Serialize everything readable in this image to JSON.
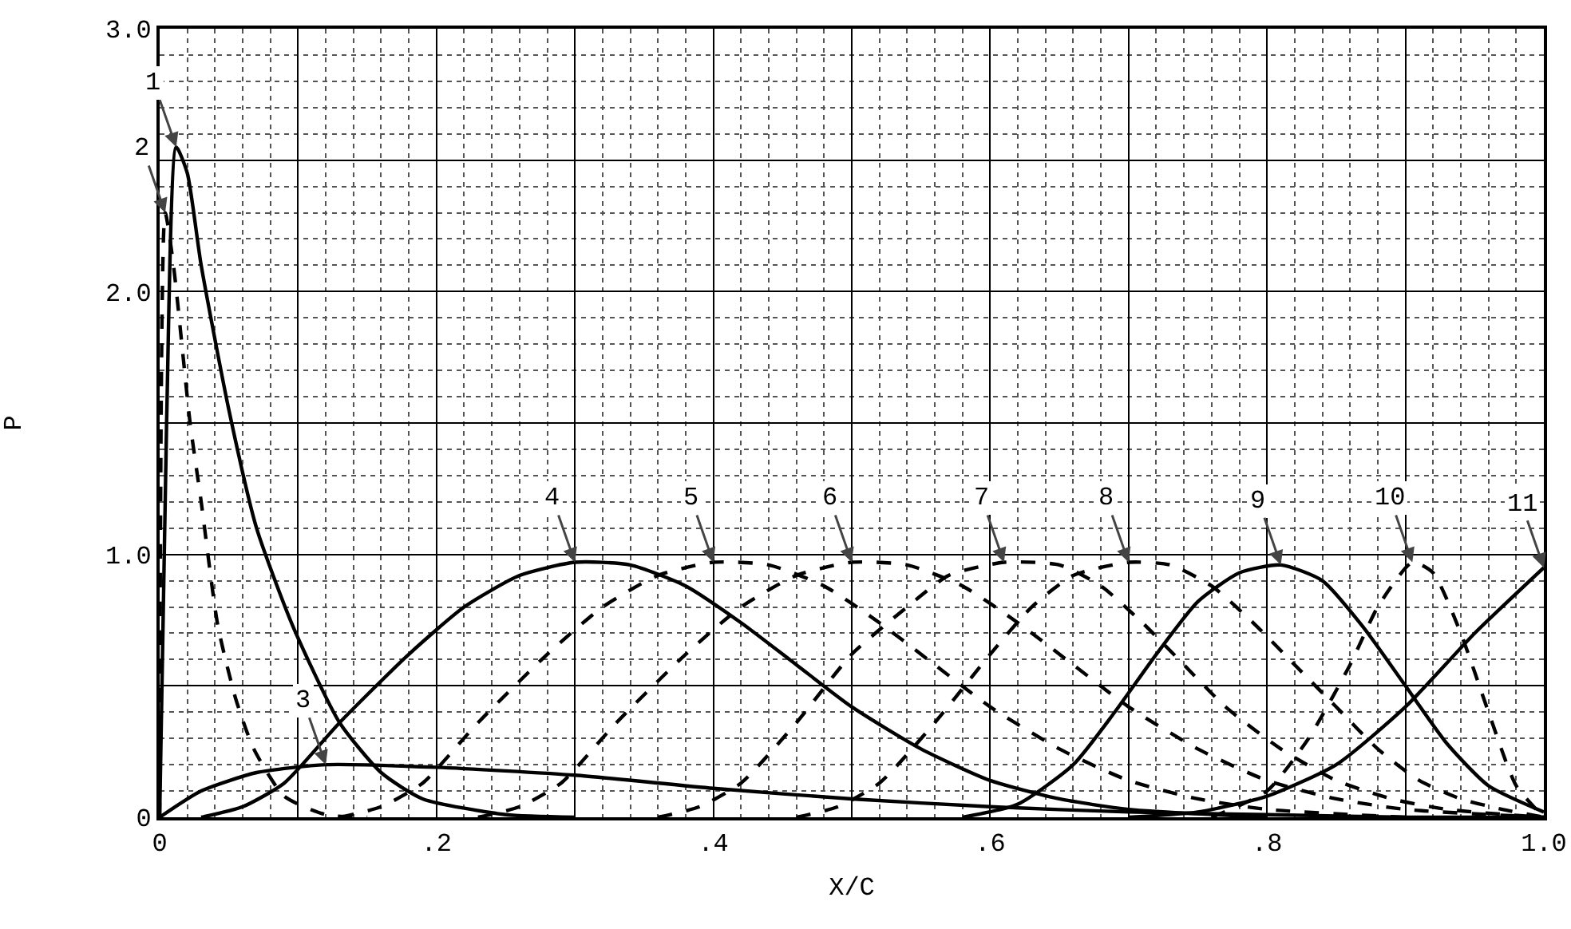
{
  "chart_data": {
    "type": "line",
    "xlabel": "X/C",
    "ylabel": "P",
    "xlim": [
      0,
      1.0
    ],
    "ylim": [
      0,
      3.0
    ],
    "xticks": [
      {
        "value": 0,
        "label": "0"
      },
      {
        "value": 0.1,
        "label": null
      },
      {
        "value": 0.2,
        "label": ".2"
      },
      {
        "value": 0.3,
        "label": null
      },
      {
        "value": 0.4,
        "label": ".4"
      },
      {
        "value": 0.5,
        "label": null
      },
      {
        "value": 0.6,
        "label": ".6"
      },
      {
        "value": 0.7,
        "label": null
      },
      {
        "value": 0.8,
        "label": ".8"
      },
      {
        "value": 0.9,
        "label": null
      },
      {
        "value": 1.0,
        "label": "1.0"
      }
    ],
    "yticks": [
      {
        "value": 0,
        "label": "0"
      },
      {
        "value": 0.5,
        "label": null
      },
      {
        "value": 1.0,
        "label": "1.0"
      },
      {
        "value": 1.5,
        "label": null
      },
      {
        "value": 2.0,
        "label": "2.0"
      },
      {
        "value": 2.5,
        "label": null
      },
      {
        "value": 3.0,
        "label": "3.0"
      }
    ],
    "grid": true,
    "legend": false,
    "marker": "none",
    "series": [
      {
        "name": "1",
        "color": "#000000",
        "line_style": "solid",
        "x": [
          0,
          0.005,
          0.012,
          0.02,
          0.03,
          0.05,
          0.07,
          0.096,
          0.13,
          0.16,
          0.19,
          0.25,
          0.3
        ],
        "values": [
          0,
          1.5,
          2.55,
          2.45,
          2.1,
          1.55,
          1.1,
          0.73,
          0.36,
          0.17,
          0.07,
          0.01,
          0
        ]
      },
      {
        "name": "2",
        "color": "#000000",
        "line_style": "dashed",
        "x": [
          0,
          0.004,
          0.01,
          0.022,
          0.03,
          0.042,
          0.055,
          0.068,
          0.09,
          0.12,
          0.15
        ],
        "values": [
          0,
          2.3,
          2.1,
          1.5,
          1.2,
          0.73,
          0.45,
          0.26,
          0.08,
          0.01,
          0
        ]
      },
      {
        "name": "3",
        "color": "#000000",
        "line_style": "solid",
        "x": [
          0,
          0.03,
          0.07,
          0.12,
          0.2,
          0.3,
          0.4,
          0.5,
          0.6,
          0.7,
          0.8,
          0.9,
          1.0
        ],
        "values": [
          0,
          0.1,
          0.17,
          0.2,
          0.19,
          0.16,
          0.11,
          0.07,
          0.04,
          0.02,
          0.01,
          0,
          0
        ]
      },
      {
        "name": "4",
        "color": "#000000",
        "line_style": "solid",
        "x": [
          0.03,
          0.06,
          0.09,
          0.13,
          0.18,
          0.22,
          0.26,
          0.3,
          0.34,
          0.38,
          0.42,
          0.46,
          0.5,
          0.55,
          0.6,
          0.65,
          0.7,
          0.8
        ],
        "values": [
          0,
          0.04,
          0.13,
          0.36,
          0.62,
          0.8,
          0.92,
          0.97,
          0.96,
          0.88,
          0.74,
          0.58,
          0.42,
          0.26,
          0.14,
          0.07,
          0.03,
          0
        ]
      },
      {
        "name": "5",
        "color": "#000000",
        "line_style": "dashed",
        "x": [
          0.13,
          0.16,
          0.19,
          0.23,
          0.28,
          0.32,
          0.36,
          0.4,
          0.44,
          0.48,
          0.52,
          0.56,
          0.6,
          0.65,
          0.7,
          0.75,
          0.8,
          0.9
        ],
        "values": [
          0,
          0.04,
          0.13,
          0.36,
          0.62,
          0.8,
          0.92,
          0.97,
          0.96,
          0.88,
          0.74,
          0.58,
          0.42,
          0.26,
          0.14,
          0.07,
          0.03,
          0
        ]
      },
      {
        "name": "6",
        "color": "#000000",
        "line_style": "dashed",
        "x": [
          0.23,
          0.26,
          0.29,
          0.33,
          0.38,
          0.42,
          0.46,
          0.5,
          0.54,
          0.58,
          0.62,
          0.66,
          0.7,
          0.75,
          0.8,
          0.85,
          0.9,
          1.0
        ],
        "values": [
          0,
          0.04,
          0.13,
          0.36,
          0.62,
          0.8,
          0.92,
          0.97,
          0.96,
          0.88,
          0.74,
          0.58,
          0.42,
          0.26,
          0.14,
          0.07,
          0.03,
          0
        ]
      },
      {
        "name": "7",
        "color": "#000000",
        "line_style": "dashed",
        "x": [
          0.36,
          0.39,
          0.42,
          0.46,
          0.5,
          0.54,
          0.57,
          0.61,
          0.65,
          0.68,
          0.71,
          0.74,
          0.77,
          0.81,
          0.85,
          0.89,
          0.93,
          1.0
        ],
        "values": [
          0,
          0.04,
          0.13,
          0.36,
          0.62,
          0.8,
          0.92,
          0.97,
          0.96,
          0.88,
          0.74,
          0.58,
          0.42,
          0.26,
          0.14,
          0.07,
          0.03,
          0
        ]
      },
      {
        "name": "8",
        "color": "#000000",
        "line_style": "dashed",
        "x": [
          0.46,
          0.49,
          0.52,
          0.56,
          0.6,
          0.63,
          0.66,
          0.7,
          0.73,
          0.76,
          0.79,
          0.82,
          0.85,
          0.88,
          0.91,
          0.94,
          0.97,
          1.0
        ],
        "values": [
          0,
          0.04,
          0.13,
          0.36,
          0.62,
          0.8,
          0.92,
          0.97,
          0.96,
          0.88,
          0.74,
          0.58,
          0.42,
          0.26,
          0.14,
          0.07,
          0.03,
          0
        ]
      },
      {
        "name": "9",
        "color": "#000000",
        "line_style": "solid",
        "x": [
          0.58,
          0.62,
          0.66,
          0.69,
          0.72,
          0.75,
          0.78,
          0.81,
          0.84,
          0.87,
          0.9,
          0.93,
          0.96,
          1.0
        ],
        "values": [
          0,
          0.05,
          0.2,
          0.4,
          0.62,
          0.82,
          0.93,
          0.96,
          0.9,
          0.72,
          0.5,
          0.28,
          0.12,
          0.02
        ]
      },
      {
        "name": "10",
        "color": "#000000",
        "line_style": "dashed",
        "x": [
          0.76,
          0.8,
          0.83,
          0.86,
          0.88,
          0.905,
          0.92,
          0.94,
          0.96,
          0.98,
          1.0
        ],
        "values": [
          0,
          0.1,
          0.3,
          0.58,
          0.8,
          0.97,
          0.93,
          0.7,
          0.4,
          0.12,
          0
        ]
      },
      {
        "name": "11",
        "color": "#000000",
        "line_style": "solid",
        "x": [
          0.7,
          0.75,
          0.8,
          0.85,
          0.9,
          0.95,
          1.0
        ],
        "values": [
          0,
          0.02,
          0.08,
          0.2,
          0.42,
          0.7,
          0.95
        ]
      }
    ]
  }
}
